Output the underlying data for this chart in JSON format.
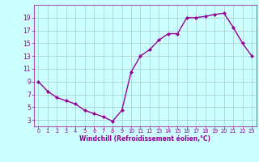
{
  "x": [
    0,
    1,
    2,
    3,
    4,
    5,
    6,
    7,
    8,
    9,
    10,
    11,
    12,
    13,
    14,
    15,
    16,
    17,
    18,
    19,
    20,
    21,
    22,
    23
  ],
  "y": [
    9,
    7.5,
    6.5,
    6,
    5.5,
    4.5,
    4,
    3.5,
    2.8,
    4.5,
    10.5,
    13,
    14,
    15.5,
    16.5,
    16.5,
    19,
    19,
    19.2,
    19.5,
    19.7,
    17.5,
    15,
    13
  ],
  "line_color": "#990099",
  "marker": "D",
  "marker_size": 2,
  "line_width": 1.0,
  "bg_color": "#ccffff",
  "grid_color": "#aacccc",
  "xlabel": "Windchill (Refroidissement éolien,°C)",
  "xlabel_color": "#990099",
  "tick_color": "#990099",
  "ylim": [
    2,
    21
  ],
  "yticks": [
    3,
    5,
    7,
    9,
    11,
    13,
    15,
    17,
    19
  ],
  "xlim": [
    -0.5,
    23.5
  ],
  "xticks": [
    0,
    1,
    2,
    3,
    4,
    5,
    6,
    7,
    8,
    9,
    10,
    11,
    12,
    13,
    14,
    15,
    16,
    17,
    18,
    19,
    20,
    21,
    22,
    23
  ],
  "xlabel_fontsize": 5.5,
  "xtick_fontsize": 4.8,
  "ytick_fontsize": 5.5
}
